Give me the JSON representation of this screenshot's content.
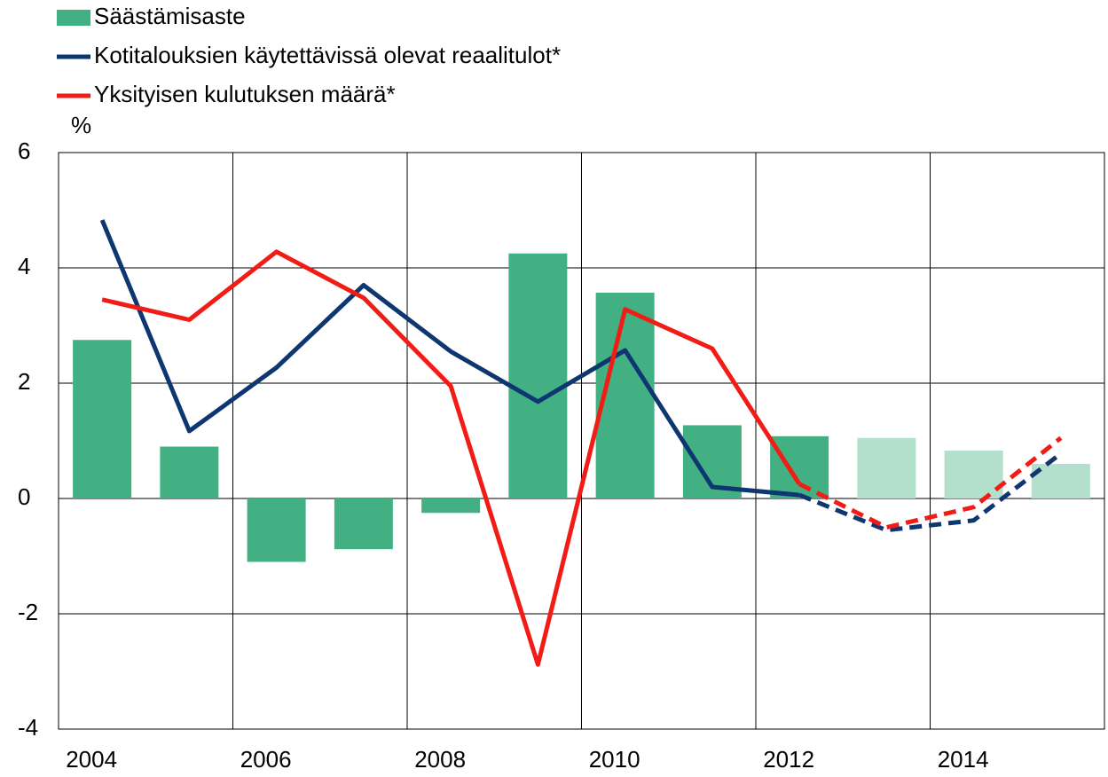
{
  "chart_data": {
    "type": "bar_line",
    "y_label": "%",
    "categories": [
      "2004",
      null,
      "2006",
      null,
      "2008",
      null,
      "2010",
      null,
      "2012",
      null,
      "2014",
      null
    ],
    "series": [
      {
        "name": "Säästämisaste",
        "type": "bar",
        "color": "#43b083",
        "colors": [
          "#43b083",
          "#43b083",
          "#43b083",
          "#43b083",
          "#43b083",
          "#43b083",
          "#43b083",
          "#43b083",
          "#43b083",
          "#b2e0cc",
          "#b2e0cc",
          "#b2e0cc"
        ],
        "values": [
          2.75,
          0.9,
          -1.1,
          -0.88,
          -0.25,
          4.25,
          3.57,
          1.27,
          1.08,
          1.05,
          0.83,
          0.6
        ]
      },
      {
        "name": "Kotitalouksien käytettävissä olevat reaalitulot*",
        "type": "line",
        "color": "#0e3771",
        "values": [
          4.83,
          1.17,
          2.27,
          3.7,
          2.55,
          1.68,
          2.57,
          0.2,
          0.06,
          -0.55,
          -0.38,
          0.78
        ]
      },
      {
        "name": "Yksityisen kulutuksen määrä*",
        "type": "line",
        "color": "#f21c16",
        "values": [
          3.45,
          3.1,
          4.28,
          3.48,
          1.95,
          -2.88,
          3.28,
          2.6,
          0.25,
          -0.5,
          -0.15,
          1.05
        ]
      }
    ],
    "dashed_from_index": 8,
    "ylim": [
      -4,
      6
    ],
    "yticks": [
      -4,
      -2,
      0,
      2,
      4,
      6
    ],
    "grid": true
  }
}
